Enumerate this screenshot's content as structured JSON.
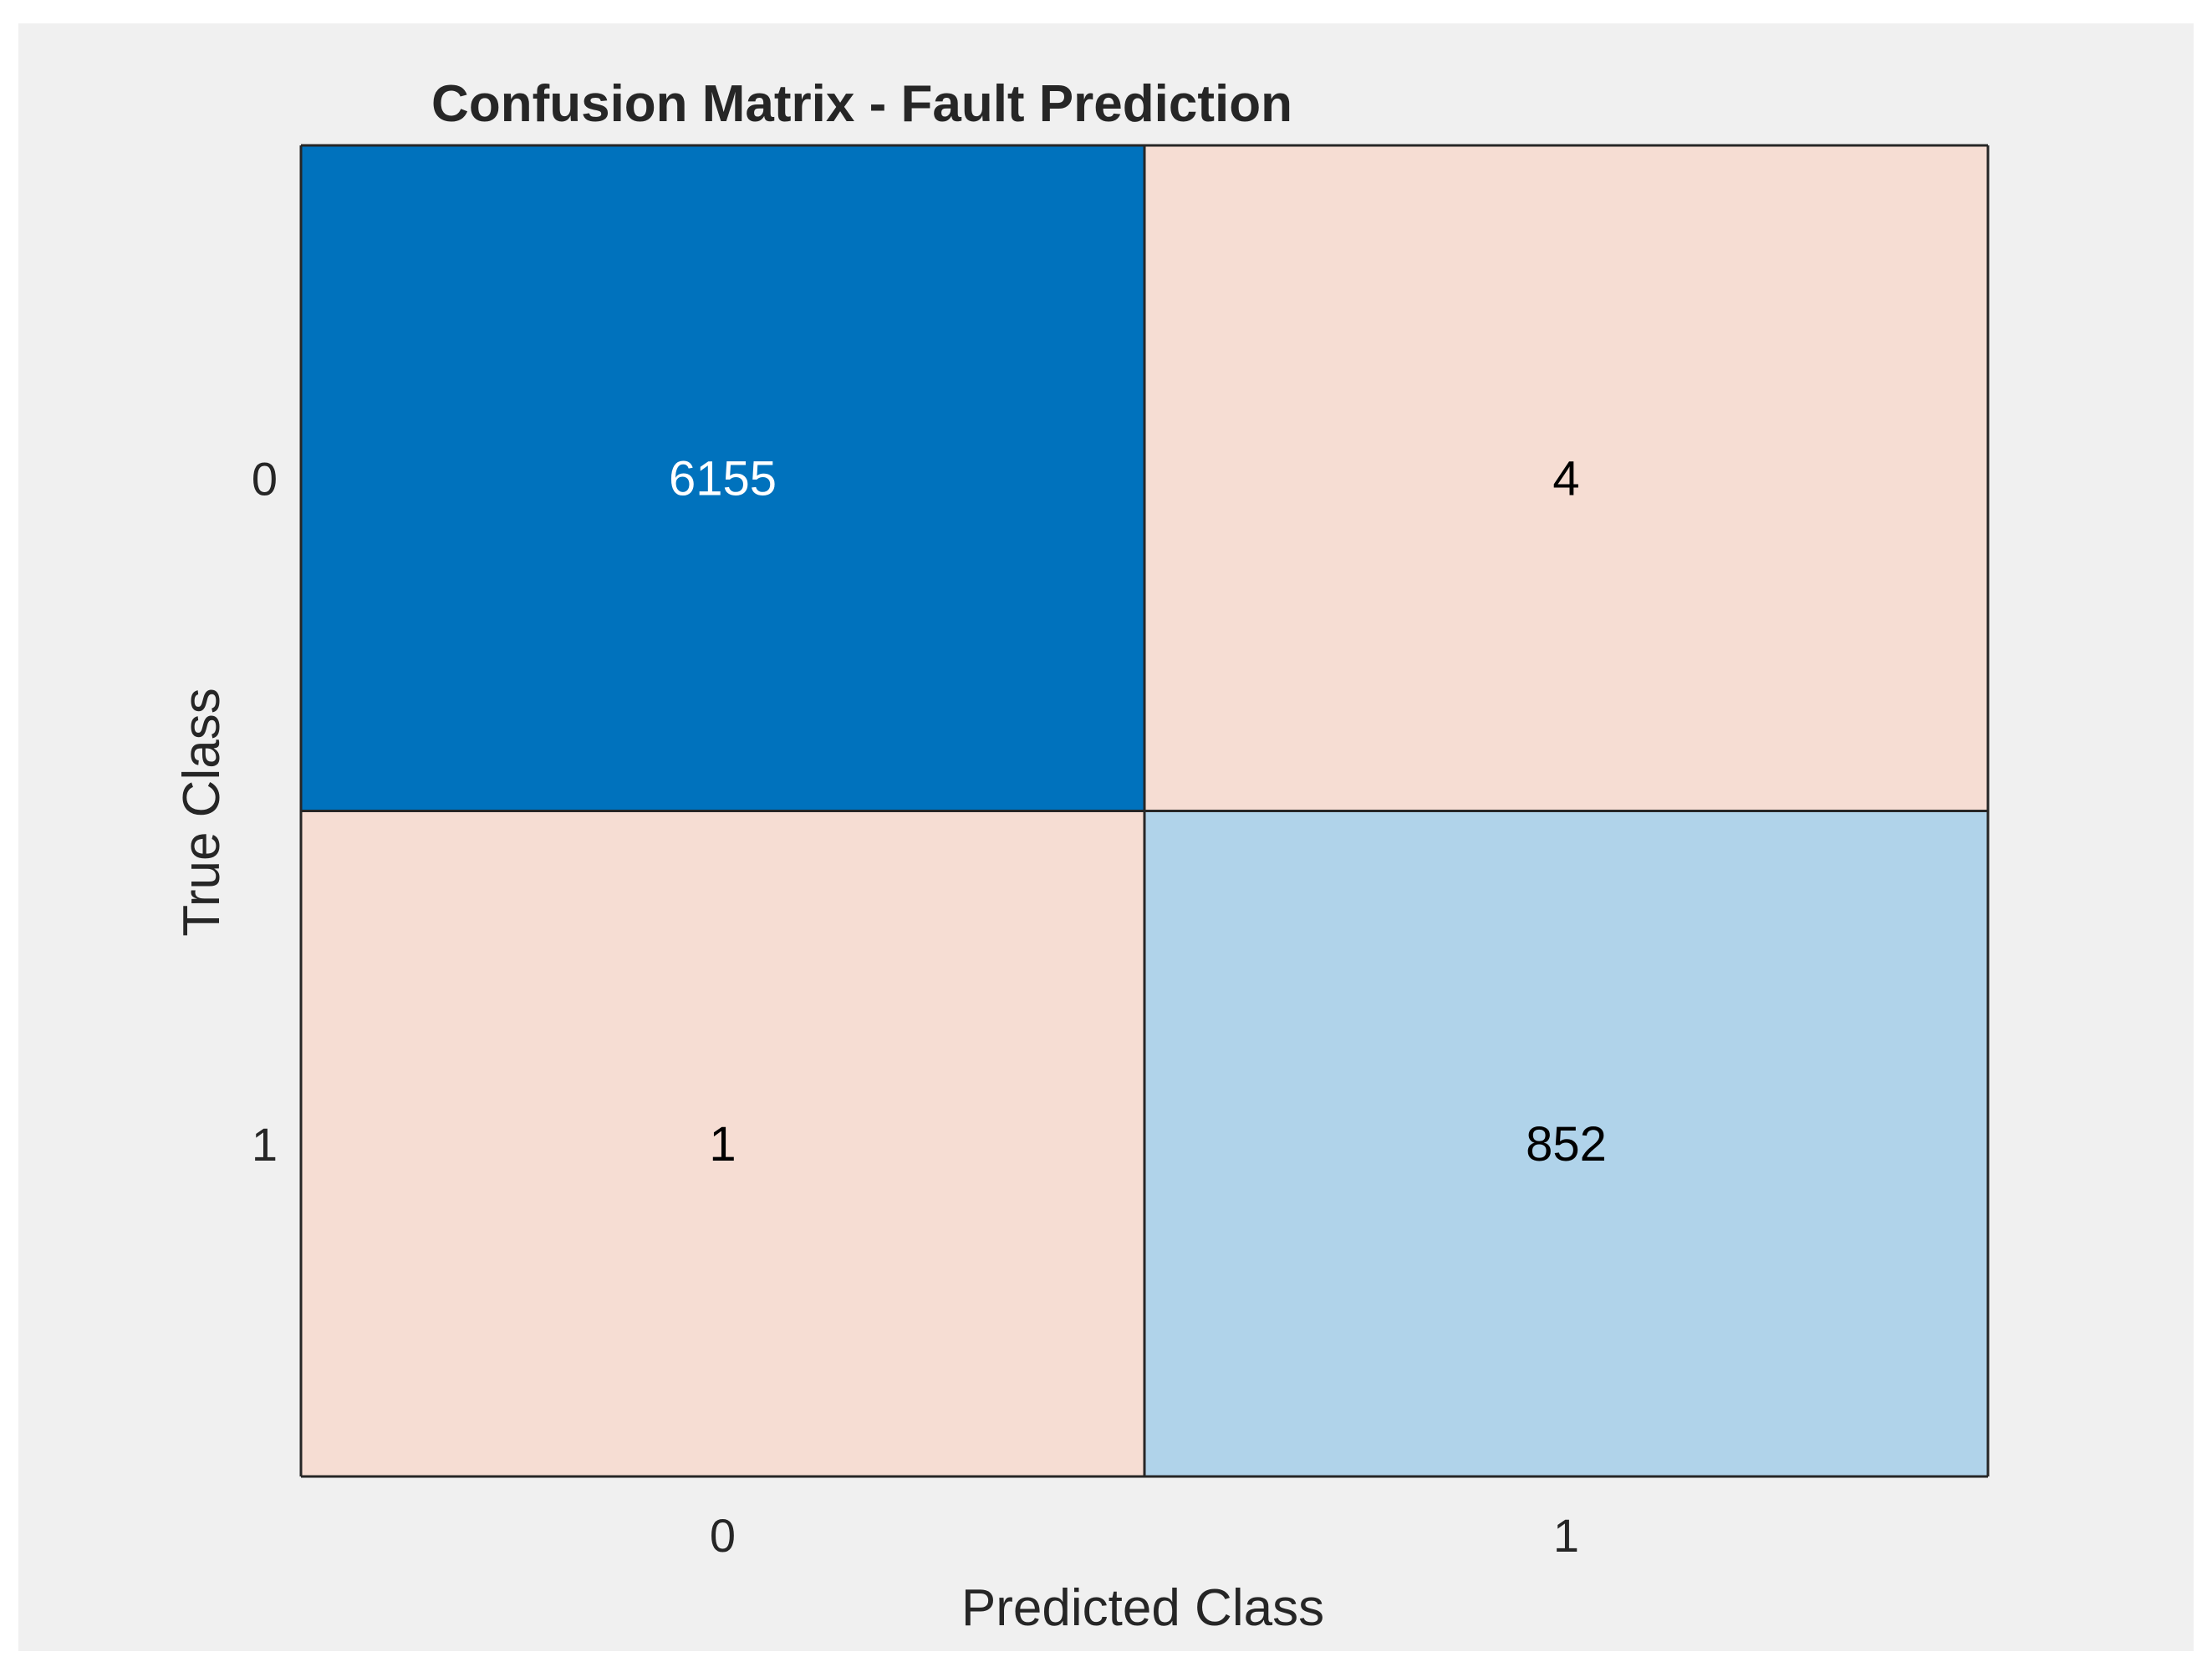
{
  "chart_data": {
    "type": "heatmap",
    "title": "Confusion Matrix - Fault Prediction",
    "xlabel": "Predicted Class",
    "ylabel": "True Class",
    "x_categories": [
      "0",
      "1"
    ],
    "y_categories": [
      "0",
      "1"
    ],
    "matrix": [
      [
        6155,
        4
      ],
      [
        1,
        852
      ]
    ],
    "cells": [
      {
        "row": 0,
        "col": 0,
        "value": 6155,
        "color": "#0072bd",
        "text_color": "#ffffff"
      },
      {
        "row": 0,
        "col": 1,
        "value": 4,
        "color": "#f6ddd3",
        "text_color": "#000000"
      },
      {
        "row": 1,
        "col": 0,
        "value": 1,
        "color": "#f6ddd3",
        "text_color": "#000000"
      },
      {
        "row": 1,
        "col": 1,
        "value": 852,
        "color": "#b0d3ea",
        "text_color": "#000000"
      }
    ],
    "grid_color": "#262626",
    "background_color": "#f0f0f0"
  }
}
